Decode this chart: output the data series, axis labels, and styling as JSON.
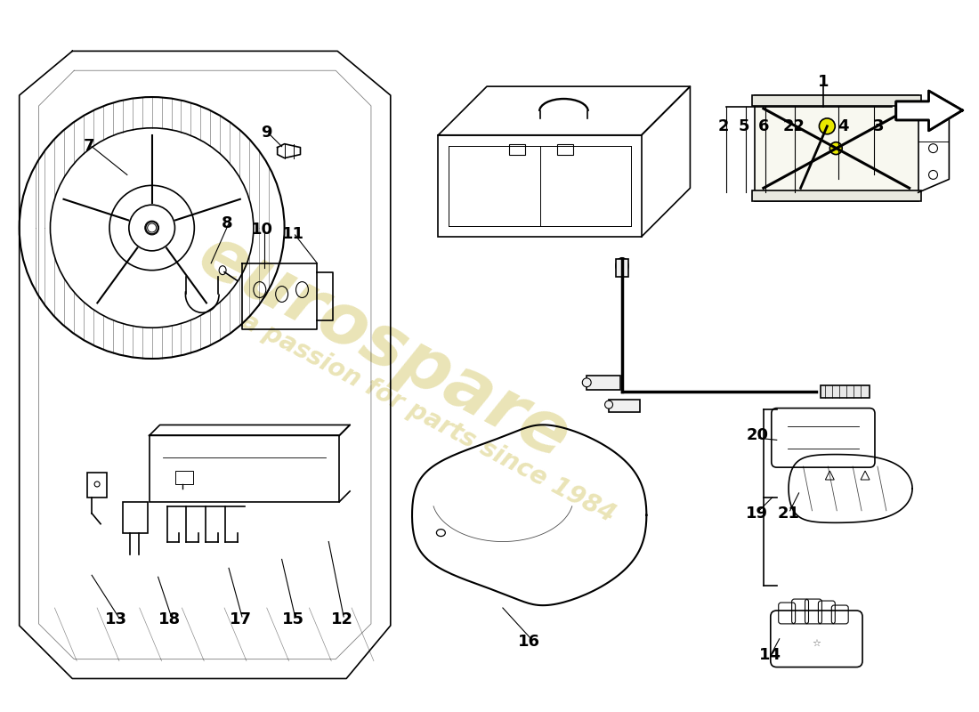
{
  "background_color": "#ffffff",
  "line_color": "#000000",
  "label_fontsize": 13,
  "watermark1": "eurospare",
  "watermark2": "a passion for parts since 1984",
  "wm_color": "#c8b840",
  "wm_alpha": 0.38
}
